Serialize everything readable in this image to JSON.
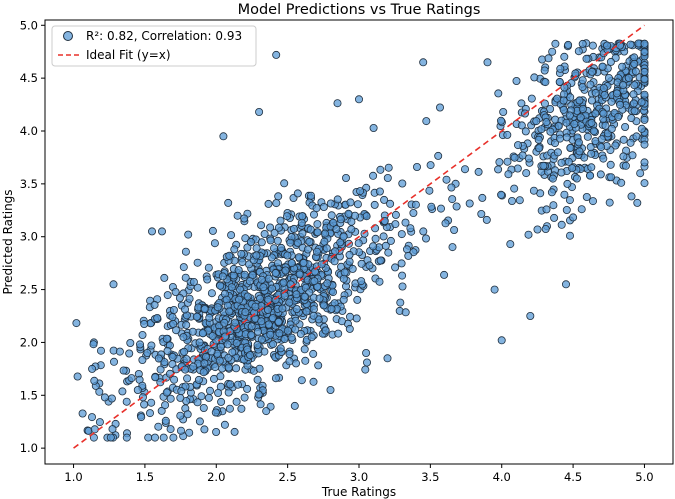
{
  "chart_data": {
    "type": "scatter",
    "title": "Model Predictions vs True Ratings",
    "xlabel": "True Ratings",
    "ylabel": "Predicted Ratings",
    "xlim": [
      0.8,
      5.2
    ],
    "ylim": [
      0.85,
      5.05
    ],
    "xticks": [
      1.0,
      1.5,
      2.0,
      2.5,
      3.0,
      3.5,
      4.0,
      4.5,
      5.0
    ],
    "yticks": [
      1.0,
      1.5,
      2.0,
      2.5,
      3.0,
      3.5,
      4.0,
      4.5,
      5.0
    ],
    "grid": false,
    "legend_position": "top-left",
    "series": [
      {
        "name": "R²: 0.82, Correlation: 0.93",
        "kind": "scatter",
        "color": "#5b9bd5",
        "edge_color": "#1f2f3f",
        "opacity": 0.75,
        "sample_points": [
          [
            1.13,
            1.75
          ],
          [
            1.22,
            1.48
          ],
          [
            1.28,
            2.55
          ],
          [
            1.45,
            1.55
          ],
          [
            1.55,
            3.05
          ],
          [
            1.62,
            3.05
          ],
          [
            1.68,
            1.18
          ],
          [
            1.8,
            1.32
          ],
          [
            2.05,
            3.95
          ],
          [
            2.3,
            4.18
          ],
          [
            2.42,
            4.72
          ],
          [
            2.35,
            1.35
          ],
          [
            2.55,
            1.4
          ],
          [
            2.8,
            1.55
          ],
          [
            3.0,
            4.3
          ],
          [
            3.45,
            4.65
          ],
          [
            3.9,
            4.65
          ],
          [
            3.95,
            2.5
          ],
          [
            4.0,
            2.02
          ],
          [
            4.2,
            2.25
          ],
          [
            4.95,
            3.32
          ],
          [
            3.05,
            1.9
          ],
          [
            3.2,
            1.85
          ],
          [
            4.45,
            2.55
          ]
        ]
      },
      {
        "name": "Ideal Fit (y=x)",
        "kind": "line",
        "color": "#e8302a",
        "dash": "dashed",
        "x": [
          1.0,
          5.0
        ],
        "y": [
          1.0,
          5.0
        ]
      }
    ],
    "point_count_estimate": 1800,
    "note": "Dense cloud following y≈x with spread; ceiling of predictions near 4.83 for high true ratings."
  }
}
